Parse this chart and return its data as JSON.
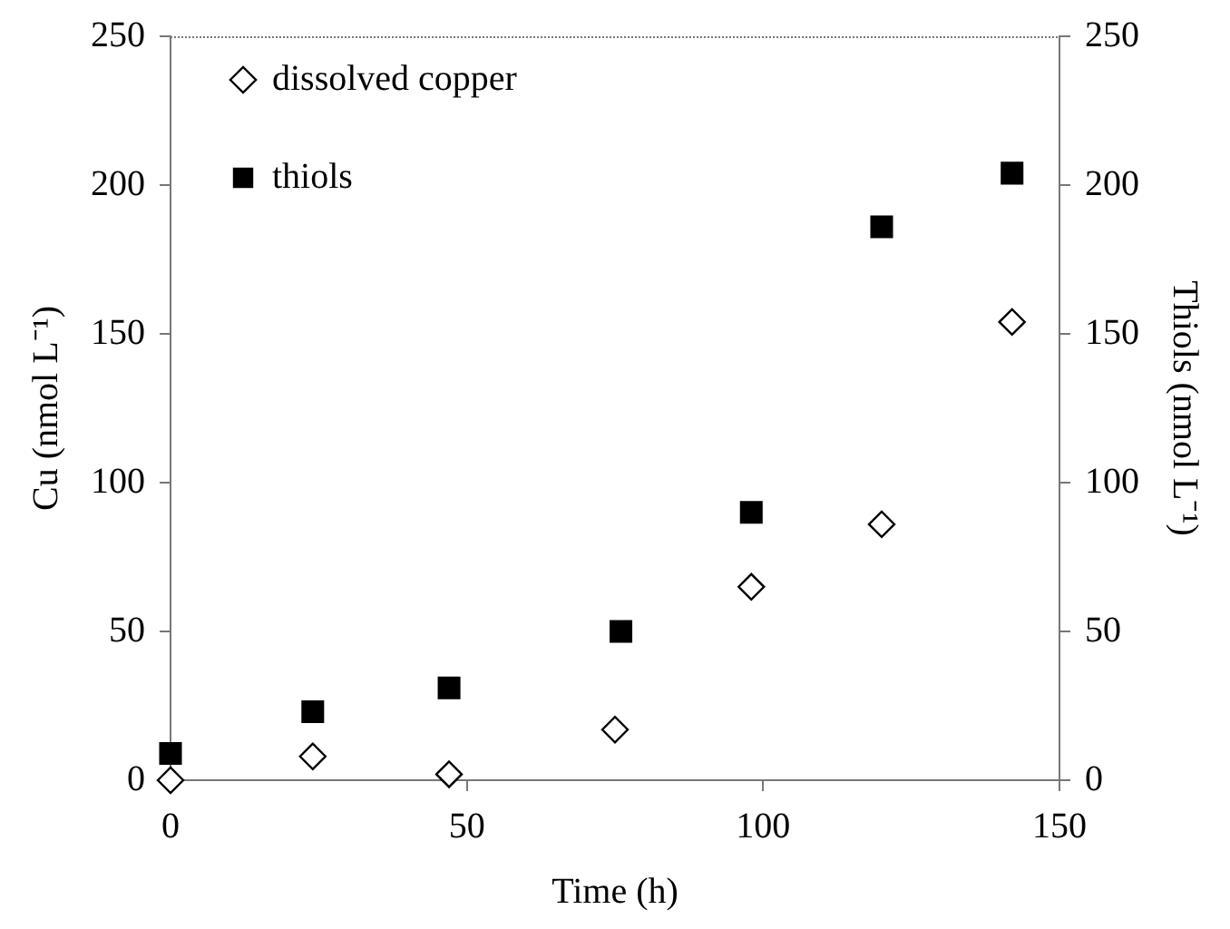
{
  "chart_data": {
    "type": "scatter",
    "xlabel": "Time (h)",
    "ylabel": "Cu (nmol L⁻¹)",
    "y2label": "Thiols (nmol L⁻¹)",
    "x": [
      0,
      24,
      47,
      75,
      98,
      120,
      142
    ],
    "series": [
      {
        "name": "dissolved copper",
        "color": "#000000",
        "marker": "diamond",
        "values": [
          0,
          8,
          2,
          17,
          65,
          86,
          154
        ]
      },
      {
        "name": "thiols",
        "color": "#000000",
        "marker": "square",
        "axis": "y2",
        "x": [
          0,
          24,
          47,
          76,
          98,
          120,
          142
        ],
        "values": [
          9,
          23,
          31,
          50,
          90,
          186,
          204
        ]
      }
    ],
    "xlim": [
      0,
      150
    ],
    "xticks": [
      0,
      50,
      100,
      150
    ],
    "ylim": [
      0,
      250
    ],
    "yticks": [
      0,
      50,
      100,
      150,
      200,
      250
    ],
    "y2lim": [
      0,
      250
    ],
    "y2ticks": [
      0,
      50,
      100,
      150,
      200,
      250
    ],
    "grid": false,
    "legend": "top left"
  }
}
